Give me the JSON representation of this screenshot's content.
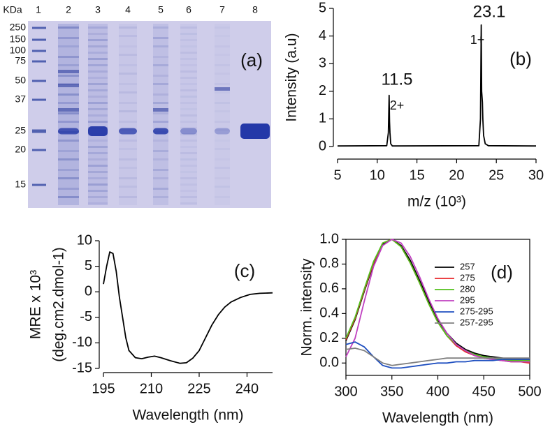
{
  "chart_data": [
    {
      "type": "gel",
      "panel_label": "(a)",
      "y_label": "KDa",
      "categories": [
        "1",
        "2",
        "3",
        "4",
        "5",
        "6",
        "7",
        "8"
      ],
      "yticks": [
        250,
        150,
        100,
        75,
        50,
        37,
        25,
        20,
        15
      ]
    },
    {
      "type": "line",
      "panel_label": "(b)",
      "xlabel": "m/z (10³)",
      "ylabel": [
        "Intensity (a.u)"
      ],
      "annotations": [
        "11.5",
        "2+",
        "23.1",
        "1+"
      ],
      "x": [
        5,
        11.2,
        11.4,
        11.5,
        11.55,
        11.6,
        11.7,
        11.9,
        22.8,
        23.0,
        23.1,
        23.15,
        23.25,
        23.3,
        23.4,
        23.6,
        24.0,
        30
      ],
      "series": [
        {
          "color": "#000000",
          "values": [
            0.02,
            0.03,
            0.5,
            1.85,
            0.9,
            0.5,
            0.1,
            0.02,
            0.03,
            1.0,
            4.4,
            2.0,
            1.6,
            1.0,
            0.4,
            0.1,
            0.03,
            0.02
          ]
        }
      ],
      "xlim": [
        5,
        30
      ],
      "ylim": [
        0,
        5
      ],
      "xticks": [
        5,
        10,
        15,
        20,
        25,
        30
      ],
      "yticks": [
        0,
        1,
        2,
        3,
        4,
        5
      ]
    },
    {
      "type": "line",
      "panel_label": "(c)",
      "xlabel": "Wavelength (nm)",
      "ylabel": [
        "MRE x 10³",
        "(deg.cm2.dmol-1)"
      ],
      "x": [
        195,
        196,
        197,
        198,
        199,
        200,
        201,
        202,
        203,
        205,
        207,
        209,
        211,
        213,
        216,
        219,
        221,
        223,
        225,
        227,
        229,
        231,
        233,
        235,
        238,
        241,
        244,
        248
      ],
      "series": [
        {
          "color": "#000000",
          "values": [
            1.5,
            5,
            7.8,
            7.5,
            4,
            -1,
            -5,
            -9,
            -11.5,
            -12.9,
            -13.1,
            -12.8,
            -12.6,
            -12.9,
            -13.5,
            -14,
            -13.9,
            -13,
            -11.5,
            -9,
            -6.5,
            -4.5,
            -3,
            -2,
            -1.1,
            -0.5,
            -0.3,
            -0.2
          ]
        }
      ],
      "xlim": [
        195,
        248
      ],
      "ylim": [
        -15,
        10
      ],
      "xticks": [
        195,
        210,
        225,
        240
      ],
      "yticks": [
        10,
        5,
        0,
        -5,
        -10,
        -15
      ]
    },
    {
      "type": "line",
      "panel_label": "(d)",
      "xlabel": "Wavelength (nm)",
      "ylabel": [
        "Norm. intensity"
      ],
      "legend": "upper right",
      "x": [
        300,
        310,
        320,
        330,
        340,
        350,
        360,
        370,
        380,
        390,
        400,
        410,
        420,
        430,
        440,
        450,
        460,
        470,
        480,
        490,
        500
      ],
      "series": [
        {
          "name": "257",
          "color": "#000000",
          "values": [
            0.18,
            0.35,
            0.58,
            0.8,
            0.96,
            1.0,
            0.95,
            0.83,
            0.67,
            0.5,
            0.35,
            0.24,
            0.16,
            0.11,
            0.08,
            0.06,
            0.05,
            0.04,
            0.03,
            0.03,
            0.03
          ]
        },
        {
          "name": "275",
          "color": "#e8282b",
          "values": [
            0.19,
            0.36,
            0.59,
            0.81,
            0.97,
            1.0,
            0.94,
            0.81,
            0.65,
            0.48,
            0.33,
            0.22,
            0.14,
            0.09,
            0.06,
            0.04,
            0.03,
            0.02,
            0.01,
            0.01,
            0.0
          ]
        },
        {
          "name": "280",
          "color": "#52c01c",
          "values": [
            0.2,
            0.37,
            0.6,
            0.82,
            0.97,
            1.0,
            0.94,
            0.81,
            0.65,
            0.48,
            0.33,
            0.22,
            0.15,
            0.1,
            0.07,
            0.05,
            0.04,
            0.03,
            0.02,
            0.02,
            0.02
          ]
        },
        {
          "name": "295",
          "color": "#c040c0",
          "values": [
            0.05,
            0.2,
            0.5,
            0.78,
            0.95,
            1.0,
            0.97,
            0.86,
            0.7,
            0.52,
            0.36,
            0.24,
            0.15,
            0.1,
            0.06,
            0.04,
            0.03,
            0.02,
            0.01,
            0.01,
            0.01
          ]
        },
        {
          "name": "275-295",
          "color": "#1f4fc0",
          "values": [
            0.15,
            0.17,
            0.13,
            0.05,
            -0.02,
            -0.04,
            -0.04,
            -0.03,
            -0.02,
            -0.01,
            0.0,
            0.0,
            0.01,
            0.01,
            0.02,
            0.02,
            0.02,
            0.03,
            0.03,
            0.03,
            0.03
          ]
        },
        {
          "name": "257-295",
          "color": "#808080",
          "values": [
            0.11,
            0.12,
            0.1,
            0.05,
            0.0,
            -0.02,
            -0.01,
            0.0,
            0.01,
            0.02,
            0.03,
            0.04,
            0.04,
            0.04,
            0.04,
            0.04,
            0.04,
            0.04,
            0.04,
            0.04,
            0.04
          ]
        }
      ],
      "xlim": [
        300,
        500
      ],
      "ylim": [
        -0.1,
        1.0
      ],
      "xticks": [
        300,
        350,
        400,
        450,
        500
      ],
      "yticks": [
        {
          "value": 0,
          "label": "0.0"
        },
        0.2,
        0.4,
        0.6,
        0.8,
        {
          "value": 1,
          "label": "1.0"
        }
      ]
    }
  ]
}
